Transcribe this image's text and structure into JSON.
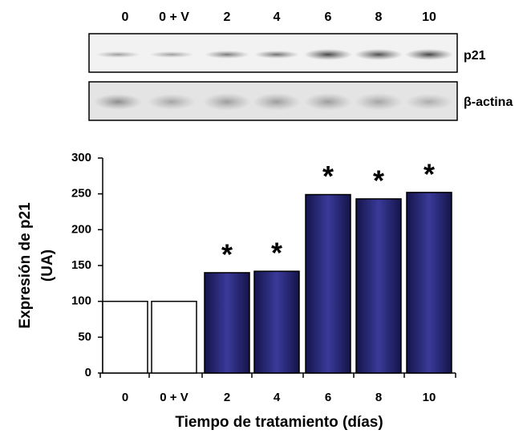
{
  "blot": {
    "lanes": [
      "0",
      "0 + V",
      "2",
      "4",
      "6",
      "8",
      "10"
    ],
    "bands": [
      "p21",
      "β-actina"
    ]
  },
  "chart_data": {
    "type": "bar",
    "ylabel": [
      "Expresión de p21",
      "(UA)"
    ],
    "xlabel": "Tiempo de tratamiento (días)",
    "categories": [
      "0",
      "0 + V",
      "2",
      "4",
      "6",
      "8",
      "10"
    ],
    "values": [
      100,
      100,
      140,
      142,
      249,
      243,
      252
    ],
    "colors": [
      "#ffffff",
      "#ffffff",
      "#1f1f6e",
      "#1f1f6e",
      "#1f1f6e",
      "#1f1f6e",
      "#1f1f6e"
    ],
    "annotations": [
      null,
      null,
      "*",
      "*",
      "*",
      "*",
      "*"
    ],
    "ylim": [
      0,
      300
    ],
    "yticks": [
      0,
      50,
      100,
      150,
      200,
      250,
      300
    ]
  }
}
